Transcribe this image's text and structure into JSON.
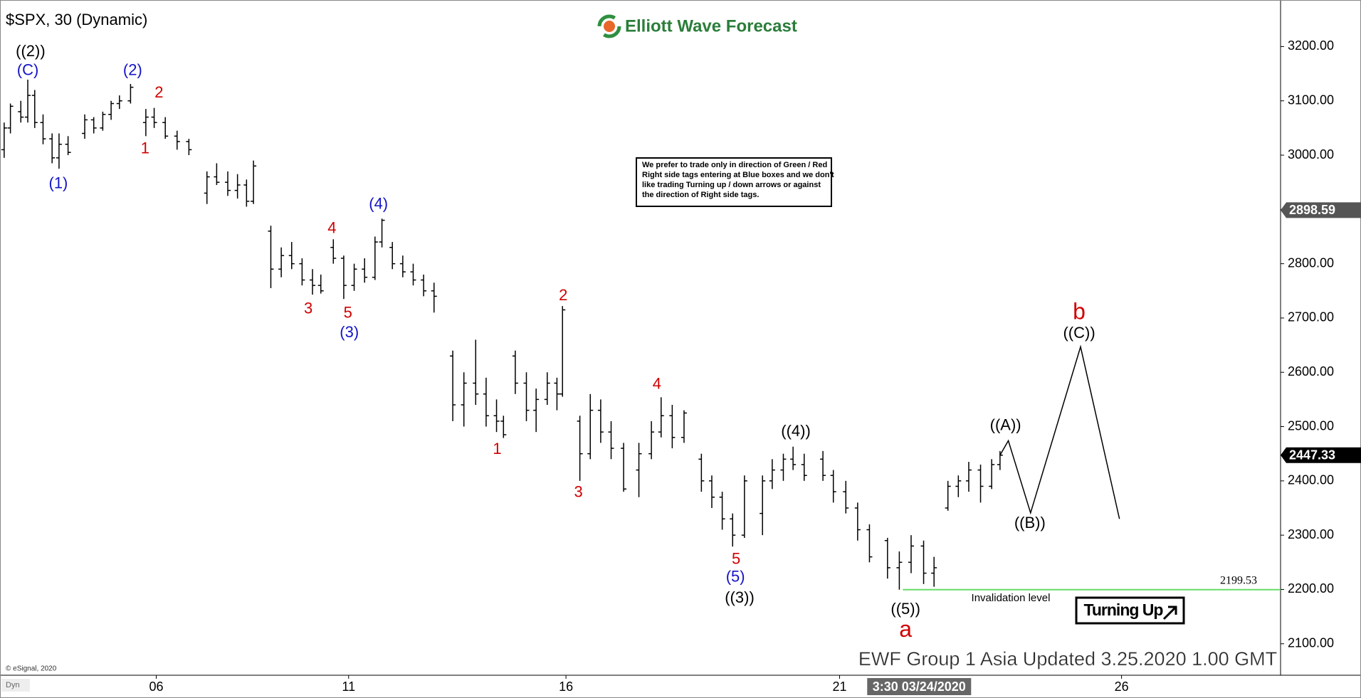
{
  "chart_data": {
    "type": "ohlc",
    "title": "$SPX, 30 (Dynamic)",
    "brand": "Elliott Wave Forecast",
    "copyright": "© eSignal, 2020",
    "corner_label": "Dyn",
    "footer": "EWF Group 1 Asia Updated 3.25.2020 1.00 GMT",
    "badge": "Turning Up",
    "notice": [
      "We prefer to trade only in direction of Green / Red",
      "Right side tags entering at Blue boxes and we don't",
      "like trading Turning up / down arrows or against",
      "the direction of Right side tags."
    ],
    "color": "#000000",
    "xlim": [
      0,
      18.44
    ],
    "ylim": [
      2042,
      3270
    ],
    "xticks": [
      {
        "value": 2.25,
        "label": "06"
      },
      {
        "value": 5.02,
        "label": "11"
      },
      {
        "value": 8.15,
        "label": "16"
      },
      {
        "value": 12.09,
        "label": "21"
      },
      {
        "value": 16.15,
        "label": "26"
      }
    ],
    "x_cursor": {
      "value": 13.41,
      "label": "3:30 03/24/2020"
    },
    "yticks": [
      {
        "value": 2100,
        "label": "2100.00"
      },
      {
        "value": 2200,
        "label": "2200.00"
      },
      {
        "value": 2300,
        "label": "2300.00"
      },
      {
        "value": 2400,
        "label": "2400.00"
      },
      {
        "value": 2500,
        "label": "2500.00"
      },
      {
        "value": 2600,
        "label": "2600.00"
      },
      {
        "value": 2700,
        "label": "2700.00"
      },
      {
        "value": 2800,
        "label": "2800.00"
      },
      {
        "value": 2900,
        "label": "2900.00"
      },
      {
        "value": 3000,
        "label": "3000.00"
      },
      {
        "value": 3100,
        "label": "3100.00"
      },
      {
        "value": 3200,
        "label": "3200.00"
      }
    ],
    "bars": [
      [
        0.06,
        3010,
        3060,
        2995,
        3050
      ],
      [
        0.15,
        3050,
        3095,
        3040,
        3090
      ],
      [
        0.3,
        3080,
        3100,
        3060,
        3070
      ],
      [
        0.4,
        3070,
        3139,
        3060,
        3110
      ],
      [
        0.5,
        3110,
        3120,
        3050,
        3060
      ],
      [
        0.62,
        3060,
        3075,
        3020,
        3030
      ],
      [
        0.75,
        3030,
        3040,
        2985,
        2995
      ],
      [
        0.85,
        2995,
        3040,
        2975,
        3020
      ],
      [
        0.98,
        3020,
        3035,
        3000,
        3005
      ],
      [
        1.22,
        3040,
        3075,
        3030,
        3065
      ],
      [
        1.35,
        3065,
        3070,
        3040,
        3050
      ],
      [
        1.48,
        3050,
        3080,
        3045,
        3075
      ],
      [
        1.6,
        3075,
        3100,
        3065,
        3095
      ],
      [
        1.72,
        3095,
        3110,
        3085,
        3100
      ],
      [
        1.88,
        3100,
        3131,
        3095,
        3125
      ],
      [
        2.1,
        3060,
        3085,
        3035,
        3070
      ],
      [
        2.22,
        3070,
        3087,
        3050,
        3060
      ],
      [
        2.38,
        3060,
        3070,
        3030,
        3035
      ],
      [
        2.55,
        3035,
        3045,
        3010,
        3025
      ],
      [
        2.72,
        3025,
        3030,
        3000,
        3010
      ],
      [
        2.98,
        2930,
        2970,
        2910,
        2960
      ],
      [
        3.12,
        2960,
        2985,
        2945,
        2950
      ],
      [
        3.28,
        2950,
        2970,
        2925,
        2935
      ],
      [
        3.42,
        2935,
        2965,
        2920,
        2945
      ],
      [
        3.55,
        2945,
        2955,
        2905,
        2915
      ],
      [
        3.65,
        2915,
        2990,
        2910,
        2980
      ],
      [
        3.9,
        2860,
        2870,
        2755,
        2790
      ],
      [
        4.05,
        2790,
        2830,
        2775,
        2815
      ],
      [
        4.2,
        2815,
        2840,
        2790,
        2800
      ],
      [
        4.35,
        2800,
        2810,
        2760,
        2770
      ],
      [
        4.5,
        2770,
        2790,
        2743,
        2760
      ],
      [
        4.62,
        2760,
        2780,
        2745,
        2750
      ],
      [
        4.8,
        2830,
        2845,
        2800,
        2810
      ],
      [
        4.95,
        2810,
        2815,
        2735,
        2760
      ],
      [
        5.1,
        2760,
        2800,
        2750,
        2790
      ],
      [
        5.25,
        2790,
        2810,
        2765,
        2775
      ],
      [
        5.4,
        2775,
        2850,
        2770,
        2840
      ],
      [
        5.5,
        2840,
        2883,
        2830,
        2880
      ],
      [
        5.65,
        2830,
        2840,
        2790,
        2800
      ],
      [
        5.8,
        2800,
        2815,
        2775,
        2785
      ],
      [
        5.95,
        2785,
        2800,
        2760,
        2770
      ],
      [
        6.1,
        2770,
        2780,
        2740,
        2750
      ],
      [
        6.25,
        2750,
        2765,
        2710,
        2740
      ],
      [
        6.52,
        2630,
        2640,
        2510,
        2540
      ],
      [
        6.68,
        2540,
        2600,
        2500,
        2580
      ],
      [
        6.85,
        2580,
        2660,
        2540,
        2560
      ],
      [
        7.0,
        2560,
        2590,
        2500,
        2520
      ],
      [
        7.15,
        2520,
        2550,
        2490,
        2510
      ],
      [
        7.25,
        2510,
        2520,
        2479,
        2485
      ],
      [
        7.42,
        2630,
        2640,
        2560,
        2580
      ],
      [
        7.58,
        2580,
        2600,
        2510,
        2530
      ],
      [
        7.72,
        2530,
        2570,
        2490,
        2550
      ],
      [
        7.88,
        2550,
        2600,
        2540,
        2580
      ],
      [
        8.02,
        2580,
        2590,
        2530,
        2560
      ],
      [
        8.1,
        2560,
        2722,
        2555,
        2715
      ],
      [
        8.35,
        2510,
        2520,
        2400,
        2450
      ],
      [
        8.5,
        2450,
        2560,
        2440,
        2530
      ],
      [
        8.65,
        2530,
        2550,
        2470,
        2490
      ],
      [
        8.8,
        2490,
        2510,
        2440,
        2460
      ],
      [
        8.98,
        2460,
        2470,
        2380,
        2385
      ],
      [
        9.2,
        2420,
        2470,
        2370,
        2450
      ],
      [
        9.38,
        2450,
        2510,
        2440,
        2490
      ],
      [
        9.52,
        2490,
        2554,
        2480,
        2520
      ],
      [
        9.68,
        2520,
        2540,
        2460,
        2480
      ],
      [
        9.85,
        2480,
        2530,
        2470,
        2525
      ],
      [
        10.1,
        2440,
        2450,
        2380,
        2400
      ],
      [
        10.25,
        2400,
        2410,
        2350,
        2370
      ],
      [
        10.4,
        2370,
        2380,
        2310,
        2330
      ],
      [
        10.55,
        2330,
        2340,
        2279,
        2300
      ],
      [
        10.72,
        2300,
        2410,
        2295,
        2400
      ],
      [
        10.98,
        2340,
        2410,
        2300,
        2400
      ],
      [
        11.12,
        2400,
        2440,
        2385,
        2420
      ],
      [
        11.28,
        2420,
        2450,
        2400,
        2440
      ],
      [
        11.42,
        2440,
        2463,
        2420,
        2430
      ],
      [
        11.58,
        2430,
        2450,
        2400,
        2410
      ],
      [
        11.85,
        2440,
        2455,
        2400,
        2410
      ],
      [
        12.0,
        2410,
        2420,
        2360,
        2380
      ],
      [
        12.18,
        2380,
        2400,
        2340,
        2350
      ],
      [
        12.35,
        2350,
        2360,
        2290,
        2310
      ],
      [
        12.52,
        2310,
        2320,
        2250,
        2260
      ],
      [
        12.78,
        2290,
        2295,
        2220,
        2240
      ],
      [
        12.95,
        2240,
        2270,
        2199.53,
        2250
      ],
      [
        13.12,
        2250,
        2300,
        2230,
        2280
      ],
      [
        13.3,
        2280,
        2290,
        2210,
        2230
      ],
      [
        13.45,
        2230,
        2260,
        2205,
        2240
      ],
      [
        13.65,
        2350,
        2400,
        2345,
        2390
      ],
      [
        13.8,
        2390,
        2410,
        2370,
        2400
      ],
      [
        13.95,
        2400,
        2435,
        2380,
        2420
      ],
      [
        14.12,
        2420,
        2430,
        2360,
        2390
      ],
      [
        14.28,
        2390,
        2440,
        2385,
        2430
      ],
      [
        14.4,
        2430,
        2455,
        2420,
        2447.33
      ]
    ],
    "projection": {
      "x": [
        14.4,
        14.52,
        14.84,
        15.56,
        16.12
      ],
      "values": [
        2447.33,
        2474,
        2341,
        2647,
        2330
      ],
      "color": "#000000"
    },
    "invalidation": {
      "value": 2199.53,
      "x": 13.0,
      "label": "Invalidation level",
      "color": "#66dd66"
    },
    "price_tags": [
      {
        "value": 2898.59,
        "color": "#555555"
      },
      {
        "value": 2447.33,
        "color": "#000000"
      }
    ],
    "annotations": [
      {
        "text": "((2))",
        "x": 0.44,
        "y": 3190,
        "color": "#000000"
      },
      {
        "text": "(C)",
        "x": 0.4,
        "y": 3155,
        "color": "#1414c8"
      },
      {
        "text": "(1)",
        "x": 0.84,
        "y": 2947,
        "color": "#1414c8"
      },
      {
        "text": "(2)",
        "x": 1.91,
        "y": 3155,
        "color": "#1414c8"
      },
      {
        "text": "2",
        "x": 2.29,
        "y": 3114,
        "color": "#d00000"
      },
      {
        "text": "1",
        "x": 2.09,
        "y": 3011,
        "color": "#d00000"
      },
      {
        "text": "3",
        "x": 4.44,
        "y": 2716,
        "color": "#d00000"
      },
      {
        "text": "4",
        "x": 4.78,
        "y": 2864,
        "color": "#d00000"
      },
      {
        "text": "5",
        "x": 5.01,
        "y": 2708,
        "color": "#d00000"
      },
      {
        "text": "(3)",
        "x": 5.03,
        "y": 2672,
        "color": "#1414c8"
      },
      {
        "text": "(4)",
        "x": 5.45,
        "y": 2909,
        "color": "#1414c8"
      },
      {
        "text": "1",
        "x": 7.16,
        "y": 2457,
        "color": "#d00000"
      },
      {
        "text": "2",
        "x": 8.11,
        "y": 2740,
        "color": "#d00000"
      },
      {
        "text": "3",
        "x": 8.33,
        "y": 2378,
        "color": "#d00000"
      },
      {
        "text": "4",
        "x": 9.46,
        "y": 2577,
        "color": "#d00000"
      },
      {
        "text": "5",
        "x": 10.6,
        "y": 2255,
        "color": "#d00000"
      },
      {
        "text": "(5)",
        "x": 10.59,
        "y": 2222,
        "color": "#1414c8"
      },
      {
        "text": "((3))",
        "x": 10.65,
        "y": 2183,
        "color": "#000000"
      },
      {
        "text": "((4))",
        "x": 11.46,
        "y": 2490,
        "color": "#000000"
      },
      {
        "text": "((5))",
        "x": 13.04,
        "y": 2162,
        "color": "#000000"
      },
      {
        "text": "a",
        "x": 13.04,
        "y": 2124,
        "color": "#d00000",
        "large": true
      },
      {
        "text": "((A))",
        "x": 14.48,
        "y": 2501,
        "color": "#000000"
      },
      {
        "text": "((B))",
        "x": 14.83,
        "y": 2321,
        "color": "#000000"
      },
      {
        "text": "((C))",
        "x": 15.54,
        "y": 2671,
        "color": "#000000"
      },
      {
        "text": "b",
        "x": 15.54,
        "y": 2709,
        "color": "#d00000",
        "large": true
      }
    ]
  }
}
